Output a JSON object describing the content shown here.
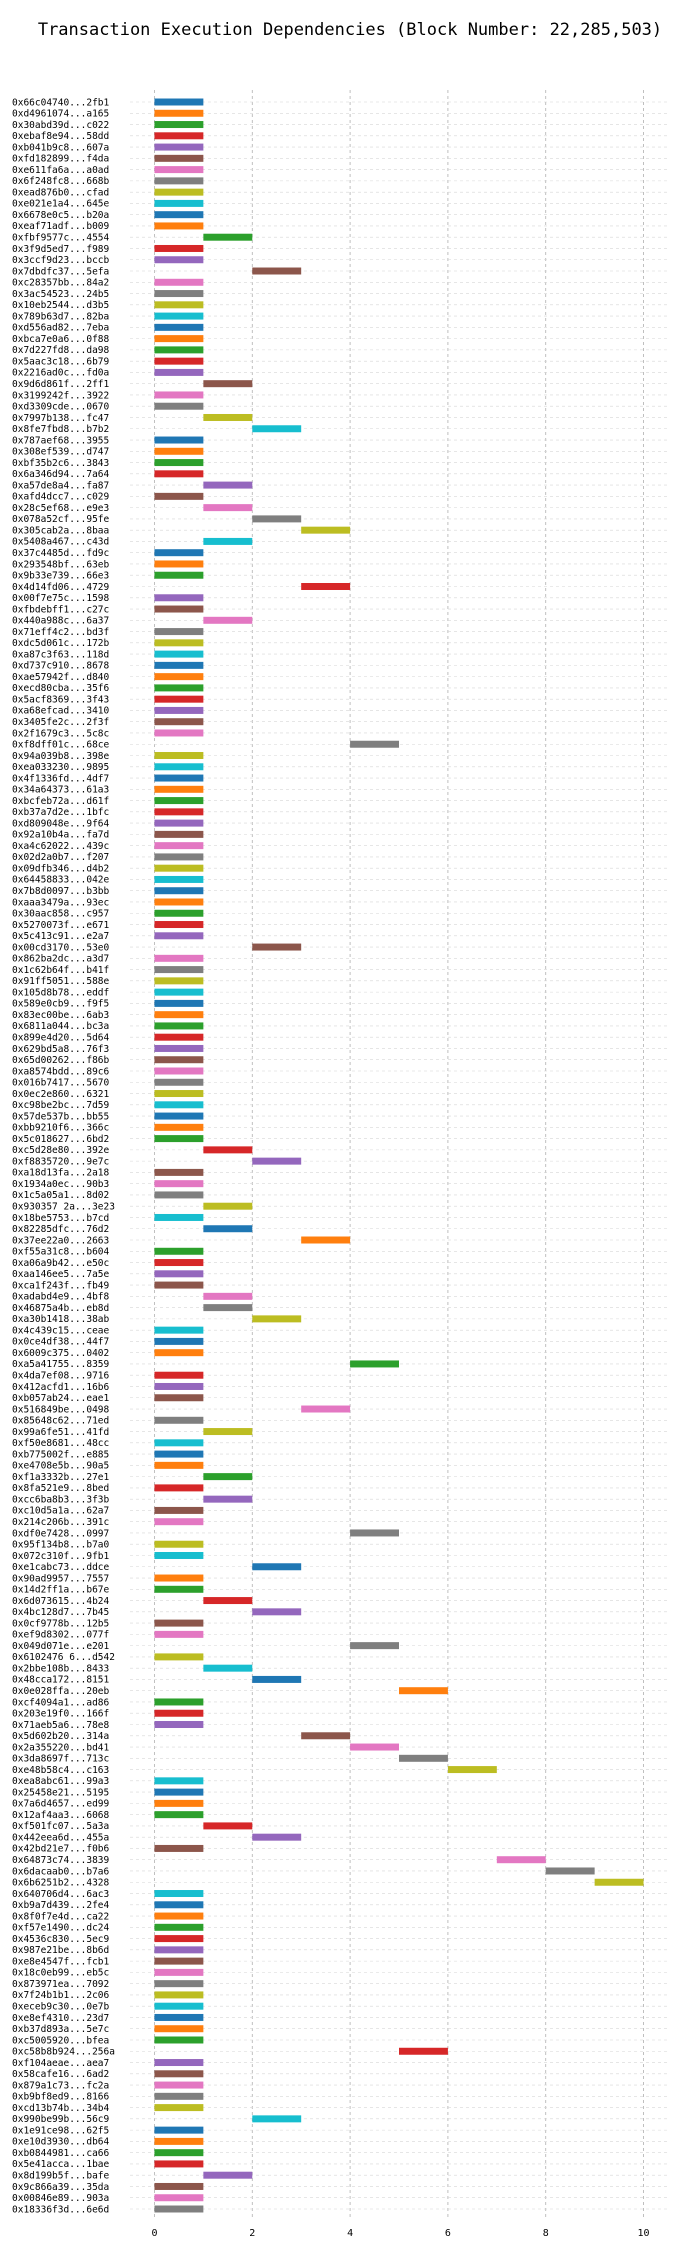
{
  "chart_data": {
    "type": "bar",
    "orientation": "horizontal",
    "title": "Transaction Execution Dependencies (Block Number: 22,285,503)",
    "xlabel": "",
    "ylabel": "",
    "xlim": [
      -0.5,
      10.5
    ],
    "xticks": [
      "0",
      "2",
      "4",
      "6",
      "8",
      "10"
    ],
    "grid": true,
    "palette": [
      "#1f77b4",
      "#ff7f0e",
      "#2ca02c",
      "#d62728",
      "#9467bd",
      "#8c564b",
      "#e377c2",
      "#7f7f7f",
      "#bcbd22",
      "#17becf"
    ],
    "bars": [
      {
        "tx": "0x66c04740...2fb1",
        "start": 0,
        "end": 1
      },
      {
        "tx": "0xd4961074...a165",
        "start": 0,
        "end": 1
      },
      {
        "tx": "0x30abd39d...c022",
        "start": 0,
        "end": 1
      },
      {
        "tx": "0xebaf8e94...58dd",
        "start": 0,
        "end": 1
      },
      {
        "tx": "0xb041b9c8...607a",
        "start": 0,
        "end": 1
      },
      {
        "tx": "0xfd182899...f4da",
        "start": 0,
        "end": 1
      },
      {
        "tx": "0xe611fa6a...a0ad",
        "start": 0,
        "end": 1
      },
      {
        "tx": "0x6f248fc8...668b",
        "start": 0,
        "end": 1
      },
      {
        "tx": "0xead876b0...cfad",
        "start": 0,
        "end": 1
      },
      {
        "tx": "0xe021e1a4...645e",
        "start": 0,
        "end": 1
      },
      {
        "tx": "0x6678e0c5...b20a",
        "start": 0,
        "end": 1
      },
      {
        "tx": "0xeaf71adf...b009",
        "start": 0,
        "end": 1
      },
      {
        "tx": "0xfbf9577c...4554",
        "start": 1,
        "end": 2
      },
      {
        "tx": "0x3f9d5ed7...f989",
        "start": 0,
        "end": 1
      },
      {
        "tx": "0x3ccf9d23...bccb",
        "start": 0,
        "end": 1
      },
      {
        "tx": "0x7dbdfc37...5efa",
        "start": 2,
        "end": 3
      },
      {
        "tx": "0xc28357bb...84a2",
        "start": 0,
        "end": 1
      },
      {
        "tx": "0x3ac54523...24b5",
        "start": 0,
        "end": 1
      },
      {
        "tx": "0x10eb2544...d3b5",
        "start": 0,
        "end": 1
      },
      {
        "tx": "0x789b63d7...82ba",
        "start": 0,
        "end": 1
      },
      {
        "tx": "0xd556ad82...7eba",
        "start": 0,
        "end": 1
      },
      {
        "tx": "0xbca7e0a6...0f88",
        "start": 0,
        "end": 1
      },
      {
        "tx": "0x7d227fd8...da98",
        "start": 0,
        "end": 1
      },
      {
        "tx": "0x5aac3c18...6b79",
        "start": 0,
        "end": 1
      },
      {
        "tx": "0x2216ad0c...fd0a",
        "start": 0,
        "end": 1
      },
      {
        "tx": "0x9d6d861f...2ff1",
        "start": 1,
        "end": 2
      },
      {
        "tx": "0x3199242f...3922",
        "start": 0,
        "end": 1
      },
      {
        "tx": "0xd3309cde...0670",
        "start": 0,
        "end": 1
      },
      {
        "tx": "0x7997b138...fc47",
        "start": 1,
        "end": 2
      },
      {
        "tx": "0x8fe7fbd8...b7b2",
        "start": 2,
        "end": 3
      },
      {
        "tx": "0x787aef68...3955",
        "start": 0,
        "end": 1
      },
      {
        "tx": "0x308ef539...d747",
        "start": 0,
        "end": 1
      },
      {
        "tx": "0xbf35b2c6...3843",
        "start": 0,
        "end": 1
      },
      {
        "tx": "0x6a346d94...7a64",
        "start": 0,
        "end": 1
      },
      {
        "tx": "0xa57de8a4...fa87",
        "start": 1,
        "end": 2
      },
      {
        "tx": "0xafd4dcc7...c029",
        "start": 0,
        "end": 1
      },
      {
        "tx": "0x28c5ef68...e9e3",
        "start": 1,
        "end": 2
      },
      {
        "tx": "0x078a52cf...95fe",
        "start": 2,
        "end": 3
      },
      {
        "tx": "0x305cab2a...8baa",
        "start": 3,
        "end": 4
      },
      {
        "tx": "0x5408a467...c43d",
        "start": 1,
        "end": 2
      },
      {
        "tx": "0x37c4485d...fd9c",
        "start": 0,
        "end": 1
      },
      {
        "tx": "0x293548bf...63eb",
        "start": 0,
        "end": 1
      },
      {
        "tx": "0x9b33e739...66e3",
        "start": 0,
        "end": 1
      },
      {
        "tx": "0x4d14fd06...4729",
        "start": 3,
        "end": 4
      },
      {
        "tx": "0x00f7e75c...1598",
        "start": 0,
        "end": 1
      },
      {
        "tx": "0xfbdebff1...c27c",
        "start": 0,
        "end": 1
      },
      {
        "tx": "0x440a988c...6a37",
        "start": 1,
        "end": 2
      },
      {
        "tx": "0x71eff4c2...bd3f",
        "start": 0,
        "end": 1
      },
      {
        "tx": "0xdc5d061c...172b",
        "start": 0,
        "end": 1
      },
      {
        "tx": "0xa87c3f63...118d",
        "start": 0,
        "end": 1
      },
      {
        "tx": "0xd737c910...8678",
        "start": 0,
        "end": 1
      },
      {
        "tx": "0xae57942f...d840",
        "start": 0,
        "end": 1
      },
      {
        "tx": "0xecd80cba...35f6",
        "start": 0,
        "end": 1
      },
      {
        "tx": "0x5acf8369...3f43",
        "start": 0,
        "end": 1
      },
      {
        "tx": "0xa68efcad...3410",
        "start": 0,
        "end": 1
      },
      {
        "tx": "0x3405fe2c...2f3f",
        "start": 0,
        "end": 1
      },
      {
        "tx": "0x2f1679c3...5c8c",
        "start": 0,
        "end": 1
      },
      {
        "tx": "0xf8dff01c...68ce",
        "start": 4,
        "end": 5
      },
      {
        "tx": "0x94a039b8...398e",
        "start": 0,
        "end": 1
      },
      {
        "tx": "0xea033230...9895",
        "start": 0,
        "end": 1
      },
      {
        "tx": "0x4f1336fd...4df7",
        "start": 0,
        "end": 1
      },
      {
        "tx": "0x34a64373...61a3",
        "start": 0,
        "end": 1
      },
      {
        "tx": "0xbcfeb72a...d61f",
        "start": 0,
        "end": 1
      },
      {
        "tx": "0xb37a7d2e...1bfc",
        "start": 0,
        "end": 1
      },
      {
        "tx": "0xd809048e...9f64",
        "start": 0,
        "end": 1
      },
      {
        "tx": "0x92a10b4a...fa7d",
        "start": 0,
        "end": 1
      },
      {
        "tx": "0xa4c62022...439c",
        "start": 0,
        "end": 1
      },
      {
        "tx": "0x02d2a0b7...f207",
        "start": 0,
        "end": 1
      },
      {
        "tx": "0x09dfb346...d4b2",
        "start": 0,
        "end": 1
      },
      {
        "tx": "0x64458833...042e",
        "start": 0,
        "end": 1
      },
      {
        "tx": "0x7b8d0097...b3bb",
        "start": 0,
        "end": 1
      },
      {
        "tx": "0xaaa3479a...93ec",
        "start": 0,
        "end": 1
      },
      {
        "tx": "0x30aac858...c957",
        "start": 0,
        "end": 1
      },
      {
        "tx": "0x5270073f...e671",
        "start": 0,
        "end": 1
      },
      {
        "tx": "0x5c413c91...e2a7",
        "start": 0,
        "end": 1
      },
      {
        "tx": "0x00cd3170...53e0",
        "start": 2,
        "end": 3
      },
      {
        "tx": "0x862ba2dc...a3d7",
        "start": 0,
        "end": 1
      },
      {
        "tx": "0x1c62b64f...b41f",
        "start": 0,
        "end": 1
      },
      {
        "tx": "0x91ff5051...588e",
        "start": 0,
        "end": 1
      },
      {
        "tx": "0x105d8b78...eddf",
        "start": 0,
        "end": 1
      },
      {
        "tx": "0x589e0cb9...f9f5",
        "start": 0,
        "end": 1
      },
      {
        "tx": "0x83ec00be...6ab3",
        "start": 0,
        "end": 1
      },
      {
        "tx": "0x6811a044...bc3a",
        "start": 0,
        "end": 1
      },
      {
        "tx": "0x899e4d20...5d64",
        "start": 0,
        "end": 1
      },
      {
        "tx": "0x629bd5a8...76f3",
        "start": 0,
        "end": 1
      },
      {
        "tx": "0x65d00262...f86b",
        "start": 0,
        "end": 1
      },
      {
        "tx": "0xa8574bdd...89c6",
        "start": 0,
        "end": 1
      },
      {
        "tx": "0x016b7417...5670",
        "start": 0,
        "end": 1
      },
      {
        "tx": "0x0ec2e860...6321",
        "start": 0,
        "end": 1
      },
      {
        "tx": "0xc98be2bc...7d59",
        "start": 0,
        "end": 1
      },
      {
        "tx": "0x57de537b...bb55",
        "start": 0,
        "end": 1
      },
      {
        "tx": "0xbb9210f6...366c",
        "start": 0,
        "end": 1
      },
      {
        "tx": "0x5c018627...6bd2",
        "start": 0,
        "end": 1
      },
      {
        "tx": "0xc5d28e80...392e",
        "start": 1,
        "end": 2
      },
      {
        "tx": "0xf8835720...9e7c",
        "start": 2,
        "end": 3
      },
      {
        "tx": "0xa18d13fa...2a18",
        "start": 0,
        "end": 1
      },
      {
        "tx": "0x1934a0ec...90b3",
        "start": 0,
        "end": 1
      },
      {
        "tx": "0x1c5a05a1...8d02",
        "start": 0,
        "end": 1
      },
      {
        "tx": "0x930357 2a...3e23",
        "start": 1,
        "end": 2
      },
      {
        "tx": "0x18be5753...b7cd",
        "start": 0,
        "end": 1
      },
      {
        "tx": "0x82285dfc...76d2",
        "start": 1,
        "end": 2
      },
      {
        "tx": "0x37ee22a0...2663",
        "start": 3,
        "end": 4
      },
      {
        "tx": "0xf55a31c8...b604",
        "start": 0,
        "end": 1
      },
      {
        "tx": "0xa06a9b42...e50c",
        "start": 0,
        "end": 1
      },
      {
        "tx": "0xaa146ee5...7a5e",
        "start": 0,
        "end": 1
      },
      {
        "tx": "0xca1f243f...fb49",
        "start": 0,
        "end": 1
      },
      {
        "tx": "0xadabd4e9...4bf8",
        "start": 1,
        "end": 2
      },
      {
        "tx": "0x46875a4b...eb8d",
        "start": 1,
        "end": 2
      },
      {
        "tx": "0xa30b1418...38ab",
        "start": 2,
        "end": 3
      },
      {
        "tx": "0x4c439c15...ceae",
        "start": 0,
        "end": 1
      },
      {
        "tx": "0x0ce4df38...44f7",
        "start": 0,
        "end": 1
      },
      {
        "tx": "0x6009c375...0402",
        "start": 0,
        "end": 1
      },
      {
        "tx": "0xa5a41755...8359",
        "start": 4,
        "end": 5
      },
      {
        "tx": "0x4da7ef08...9716",
        "start": 0,
        "end": 1
      },
      {
        "tx": "0x412acfd1...16b6",
        "start": 0,
        "end": 1
      },
      {
        "tx": "0xb057ab24...eae1",
        "start": 0,
        "end": 1
      },
      {
        "tx": "0x516849be...0498",
        "start": 3,
        "end": 4
      },
      {
        "tx": "0x85648c62...71ed",
        "start": 0,
        "end": 1
      },
      {
        "tx": "0x99a6fe51...41fd",
        "start": 1,
        "end": 2
      },
      {
        "tx": "0xf50e8681...48cc",
        "start": 0,
        "end": 1
      },
      {
        "tx": "0xb775002f...e885",
        "start": 0,
        "end": 1
      },
      {
        "tx": "0xe4708e5b...90a5",
        "start": 0,
        "end": 1
      },
      {
        "tx": "0xf1a3332b...27e1",
        "start": 1,
        "end": 2
      },
      {
        "tx": "0x8fa521e9...8bed",
        "start": 0,
        "end": 1
      },
      {
        "tx": "0xcc6ba8b3...3f3b",
        "start": 1,
        "end": 2
      },
      {
        "tx": "0xc10d5a1a...62a7",
        "start": 0,
        "end": 1
      },
      {
        "tx": "0x214c206b...391c",
        "start": 0,
        "end": 1
      },
      {
        "tx": "0xdf0e7428...0997",
        "start": 4,
        "end": 5
      },
      {
        "tx": "0x95f134b8...b7a0",
        "start": 0,
        "end": 1
      },
      {
        "tx": "0x072c310f...9fb1",
        "start": 0,
        "end": 1
      },
      {
        "tx": "0xe1cabc73...ddce",
        "start": 2,
        "end": 3
      },
      {
        "tx": "0x90ad9957...7557",
        "start": 0,
        "end": 1
      },
      {
        "tx": "0x14d2ff1a...b67e",
        "start": 0,
        "end": 1
      },
      {
        "tx": "0x6d073615...4b24",
        "start": 1,
        "end": 2
      },
      {
        "tx": "0x4bc128d7...7b45",
        "start": 2,
        "end": 3
      },
      {
        "tx": "0x0cf9778b...12b5",
        "start": 0,
        "end": 1
      },
      {
        "tx": "0xef9d8302...077f",
        "start": 0,
        "end": 1
      },
      {
        "tx": "0x049d071e...e201",
        "start": 4,
        "end": 5
      },
      {
        "tx": "0x6102476 6...d542",
        "start": 0,
        "end": 1
      },
      {
        "tx": "0x2bbe108b...8433",
        "start": 1,
        "end": 2
      },
      {
        "tx": "0x48cca172...8151",
        "start": 2,
        "end": 3
      },
      {
        "tx": "0x0e028ffa...20eb",
        "start": 5,
        "end": 6
      },
      {
        "tx": "0xcf4094a1...ad86",
        "start": 0,
        "end": 1
      },
      {
        "tx": "0x203e19f0...166f",
        "start": 0,
        "end": 1
      },
      {
        "tx": "0x71aeb5a6...78e8",
        "start": 0,
        "end": 1
      },
      {
        "tx": "0x5d602b20...314a",
        "start": 3,
        "end": 4
      },
      {
        "tx": "0x2a355220...bd41",
        "start": 4,
        "end": 5
      },
      {
        "tx": "0x3da8697f...713c",
        "start": 5,
        "end": 6
      },
      {
        "tx": "0xe48b58c4...c163",
        "start": 6,
        "end": 7
      },
      {
        "tx": "0xea8abc61...99a3",
        "start": 0,
        "end": 1
      },
      {
        "tx": "0x25458e21...5195",
        "start": 0,
        "end": 1
      },
      {
        "tx": "0x7a6d4657...ed99",
        "start": 0,
        "end": 1
      },
      {
        "tx": "0x12af4aa3...6068",
        "start": 0,
        "end": 1
      },
      {
        "tx": "0xf501fc07...5a3a",
        "start": 1,
        "end": 2
      },
      {
        "tx": "0x442eea6d...455a",
        "start": 2,
        "end": 3
      },
      {
        "tx": "0x42bd21e7...f0b6",
        "start": 0,
        "end": 1
      },
      {
        "tx": "0x64873c74...3839",
        "start": 7,
        "end": 8
      },
      {
        "tx": "0x6dacaab0...b7a6",
        "start": 8,
        "end": 9
      },
      {
        "tx": "0x6b6251b2...4328",
        "start": 9,
        "end": 10
      },
      {
        "tx": "0x640706d4...6ac3",
        "start": 0,
        "end": 1
      },
      {
        "tx": "0xb9a7d439...2fe4",
        "start": 0,
        "end": 1
      },
      {
        "tx": "0x8f0f7e4d...ca22",
        "start": 0,
        "end": 1
      },
      {
        "tx": "0xf57e1490...dc24",
        "start": 0,
        "end": 1
      },
      {
        "tx": "0x4536c830...5ec9",
        "start": 0,
        "end": 1
      },
      {
        "tx": "0x987e21be...8b6d",
        "start": 0,
        "end": 1
      },
      {
        "tx": "0xe8e4547f...fcb1",
        "start": 0,
        "end": 1
      },
      {
        "tx": "0x18c0eb99...eb5c",
        "start": 0,
        "end": 1
      },
      {
        "tx": "0x873971ea...7092",
        "start": 0,
        "end": 1
      },
      {
        "tx": "0x7f24b1b1...2c06",
        "start": 0,
        "end": 1
      },
      {
        "tx": "0xeceb9c30...0e7b",
        "start": 0,
        "end": 1
      },
      {
        "tx": "0xe8ef4310...23d7",
        "start": 0,
        "end": 1
      },
      {
        "tx": "0xb37d893a...5e7c",
        "start": 0,
        "end": 1
      },
      {
        "tx": "0xc5005920...bfea",
        "start": 0,
        "end": 1
      },
      {
        "tx": "0xc58b8b924...256a",
        "start": 5,
        "end": 6
      },
      {
        "tx": "0xf104aeae...aea7",
        "start": 0,
        "end": 1
      },
      {
        "tx": "0x58cafe16...6ad2",
        "start": 0,
        "end": 1
      },
      {
        "tx": "0x879a1c73...fc2a",
        "start": 0,
        "end": 1
      },
      {
        "tx": "0xb9bf8ed9...8166",
        "start": 0,
        "end": 1
      },
      {
        "tx": "0xcd13b74b...34b4",
        "start": 0,
        "end": 1
      },
      {
        "tx": "0x990be99b...56c9",
        "start": 2,
        "end": 3
      },
      {
        "tx": "0x1e91ce98...62f5",
        "start": 0,
        "end": 1
      },
      {
        "tx": "0xe10d3930...db64",
        "start": 0,
        "end": 1
      },
      {
        "tx": "0xb0844981...ca66",
        "start": 0,
        "end": 1
      },
      {
        "tx": "0x5e41acca...1bae",
        "start": 0,
        "end": 1
      },
      {
        "tx": "0x8d199b5f...bafe",
        "start": 1,
        "end": 2
      },
      {
        "tx": "0x9c866a39...35da",
        "start": 0,
        "end": 1
      },
      {
        "tx": "0x00846e89...903a",
        "start": 0,
        "end": 1
      },
      {
        "tx": "0x18336f3d...6e6d",
        "start": 0,
        "end": 1
      }
    ]
  }
}
